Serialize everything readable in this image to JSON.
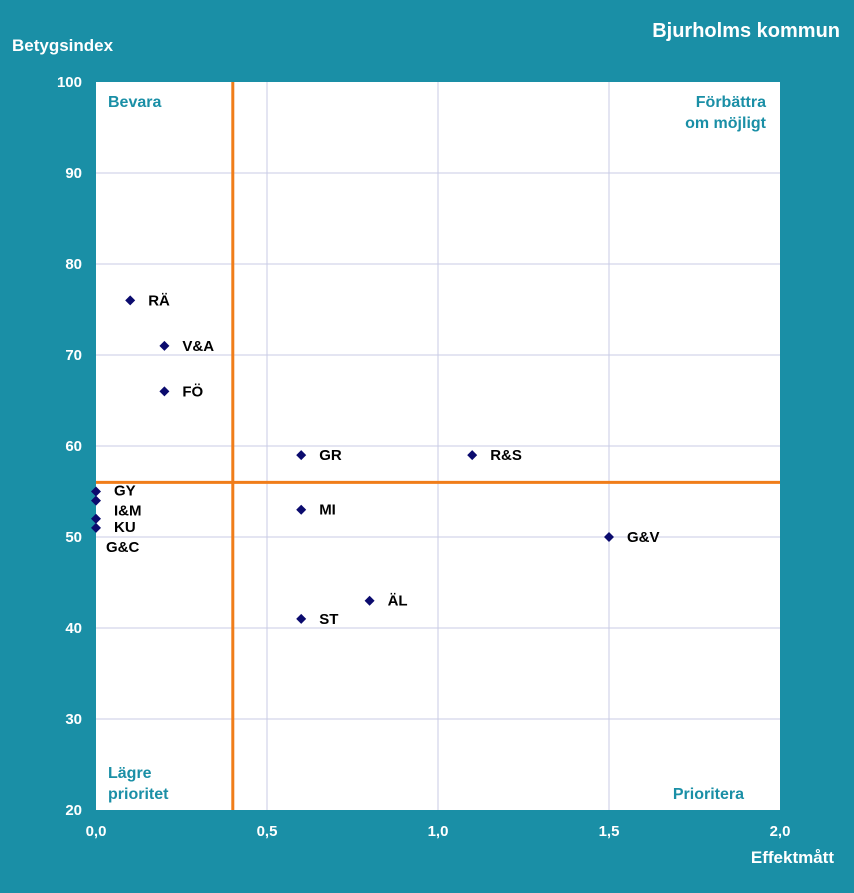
{
  "chart_data": {
    "type": "scatter",
    "title": "Bjurholms kommun",
    "xlabel": "Effektmått",
    "ylabel": "Betygsindex",
    "xlim": [
      0,
      2
    ],
    "ylim": [
      20,
      100
    ],
    "x_ticks": [
      "0,0",
      "0,5",
      "1,0",
      "1,5",
      "2,0"
    ],
    "y_ticks": [
      "20",
      "30",
      "40",
      "50",
      "60",
      "70",
      "80",
      "90",
      "100"
    ],
    "grid": true,
    "reference_lines": {
      "x": 0.4,
      "y": 56,
      "color": "#f07d1a"
    },
    "marker_color": "#0b0b6e",
    "quadrant_labels": {
      "top_left": "Bevara",
      "top_right_line1": "Förbättra",
      "top_right_line2": "om möjligt",
      "bottom_left_line1": "Lägre",
      "bottom_left_line2": "prioritet",
      "bottom_right": "Prioritera"
    },
    "points": [
      {
        "label": "RÄ",
        "x": 0.1,
        "y": 76
      },
      {
        "label": "V&A",
        "x": 0.2,
        "y": 71
      },
      {
        "label": "FÖ",
        "x": 0.2,
        "y": 66
      },
      {
        "label": "GR",
        "x": 0.6,
        "y": 59
      },
      {
        "label": "R&S",
        "x": 1.1,
        "y": 59
      },
      {
        "label": "GY",
        "x": 0.0,
        "y": 55
      },
      {
        "label": "I&M",
        "x": 0.0,
        "y": 54
      },
      {
        "label": "KU",
        "x": 0.0,
        "y": 52
      },
      {
        "label": "G&C",
        "x": 0.0,
        "y": 51
      },
      {
        "label": "MI",
        "x": 0.6,
        "y": 53
      },
      {
        "label": "G&V",
        "x": 1.5,
        "y": 50
      },
      {
        "label": "ÄL",
        "x": 0.8,
        "y": 43
      },
      {
        "label": "ST",
        "x": 0.6,
        "y": 41
      }
    ]
  }
}
